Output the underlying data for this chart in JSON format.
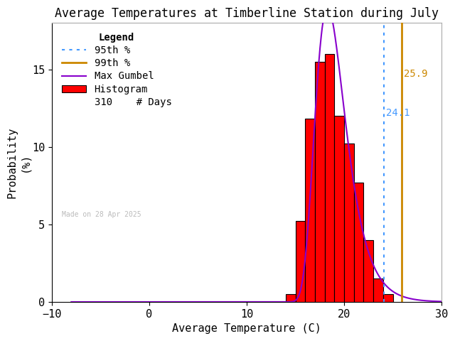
{
  "title": "Average Temperatures at Timberline Station during July",
  "xlabel": "Average Temperature (C)",
  "ylabel_line1": "Probability",
  "ylabel_line2": "(%)",
  "xlim": [
    -10,
    30
  ],
  "ylim": [
    0,
    18
  ],
  "yticks": [
    0,
    5,
    10,
    15
  ],
  "xticks": [
    -10,
    0,
    10,
    20,
    30
  ],
  "hist_left_edges": [
    13,
    14,
    15,
    16,
    17,
    18,
    19,
    20,
    21,
    22,
    23,
    24
  ],
  "hist_values": [
    0.0,
    0.5,
    5.2,
    11.8,
    15.5,
    16.0,
    12.0,
    10.2,
    7.7,
    4.0,
    1.5,
    0.5
  ],
  "hist_color": "#ff0000",
  "hist_edgecolor": "#000000",
  "gumbel_mu": 18.3,
  "gumbel_beta": 1.55,
  "gumbel_peak_pct": 19.0,
  "gumbel_color": "#8800cc",
  "pct95_x": 24.1,
  "pct95_color": "#4499ff",
  "pct95_linestyle": "dotted",
  "pct95_label": "24.1",
  "pct99_x": 25.9,
  "pct99_color": "#cc8800",
  "pct99_linestyle": "solid",
  "pct99_label": "25.9",
  "n_days": 310,
  "watermark": "Made on 28 Apr 2025",
  "background_color": "#ffffff",
  "legend_title": "Legend",
  "title_fontsize": 12,
  "axis_fontsize": 11,
  "tick_fontsize": 11,
  "legend_fontsize": 10
}
